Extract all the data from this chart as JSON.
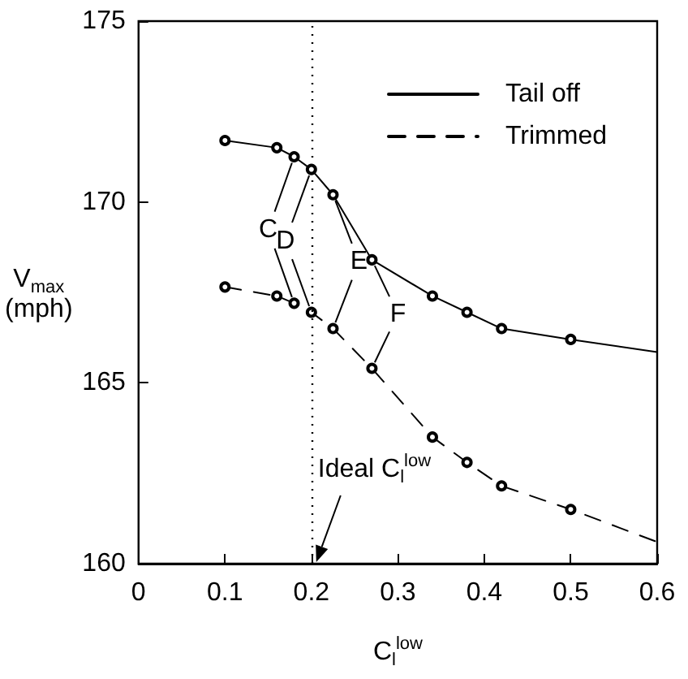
{
  "chart_data": {
    "type": "line",
    "xlabel": "C$_{l}$$^{low}$",
    "ylabel": "V$_{max}$\n(mph)",
    "x": [
      0.1,
      0.16,
      0.18,
      0.2,
      0.225,
      0.27,
      0.34,
      0.38,
      0.42,
      0.5,
      0.6
    ],
    "series": [
      {
        "name": "Tail off",
        "color": "#000000",
        "line_style": "solid",
        "values": [
          171.7,
          171.5,
          171.25,
          170.9,
          170.2,
          168.4,
          167.4,
          166.95,
          166.5,
          166.2,
          165.85
        ]
      },
      {
        "name": "Trimmed",
        "color": "#000000",
        "line_style": "dashed",
        "values": [
          167.65,
          167.4,
          167.2,
          166.95,
          166.5,
          165.4,
          163.5,
          162.8,
          162.15,
          161.5,
          160.6
        ]
      }
    ],
    "xlim": [
      0,
      0.6
    ],
    "xticks": [
      0,
      0.1,
      0.2,
      0.3,
      0.4,
      0.5,
      0.6
    ],
    "ylim": [
      160,
      175
    ],
    "yticks": [
      160,
      165,
      170,
      175
    ],
    "ref_lines": [
      {
        "axis": "x",
        "value": 0.2,
        "label": "Ideal C$_{l}$$^{low}$",
        "line_style": "dotted"
      }
    ],
    "annotations": [
      {
        "text": "C",
        "x": 0.18,
        "y": 171.25
      },
      {
        "text": "D",
        "x": 0.2,
        "y": 170.9
      },
      {
        "text": "E",
        "x": 0.225,
        "y": 170.2
      },
      {
        "text": "F",
        "x": 0.27,
        "y": 168.4
      }
    ],
    "marker": "circle",
    "grid": false,
    "legend": "top right"
  }
}
